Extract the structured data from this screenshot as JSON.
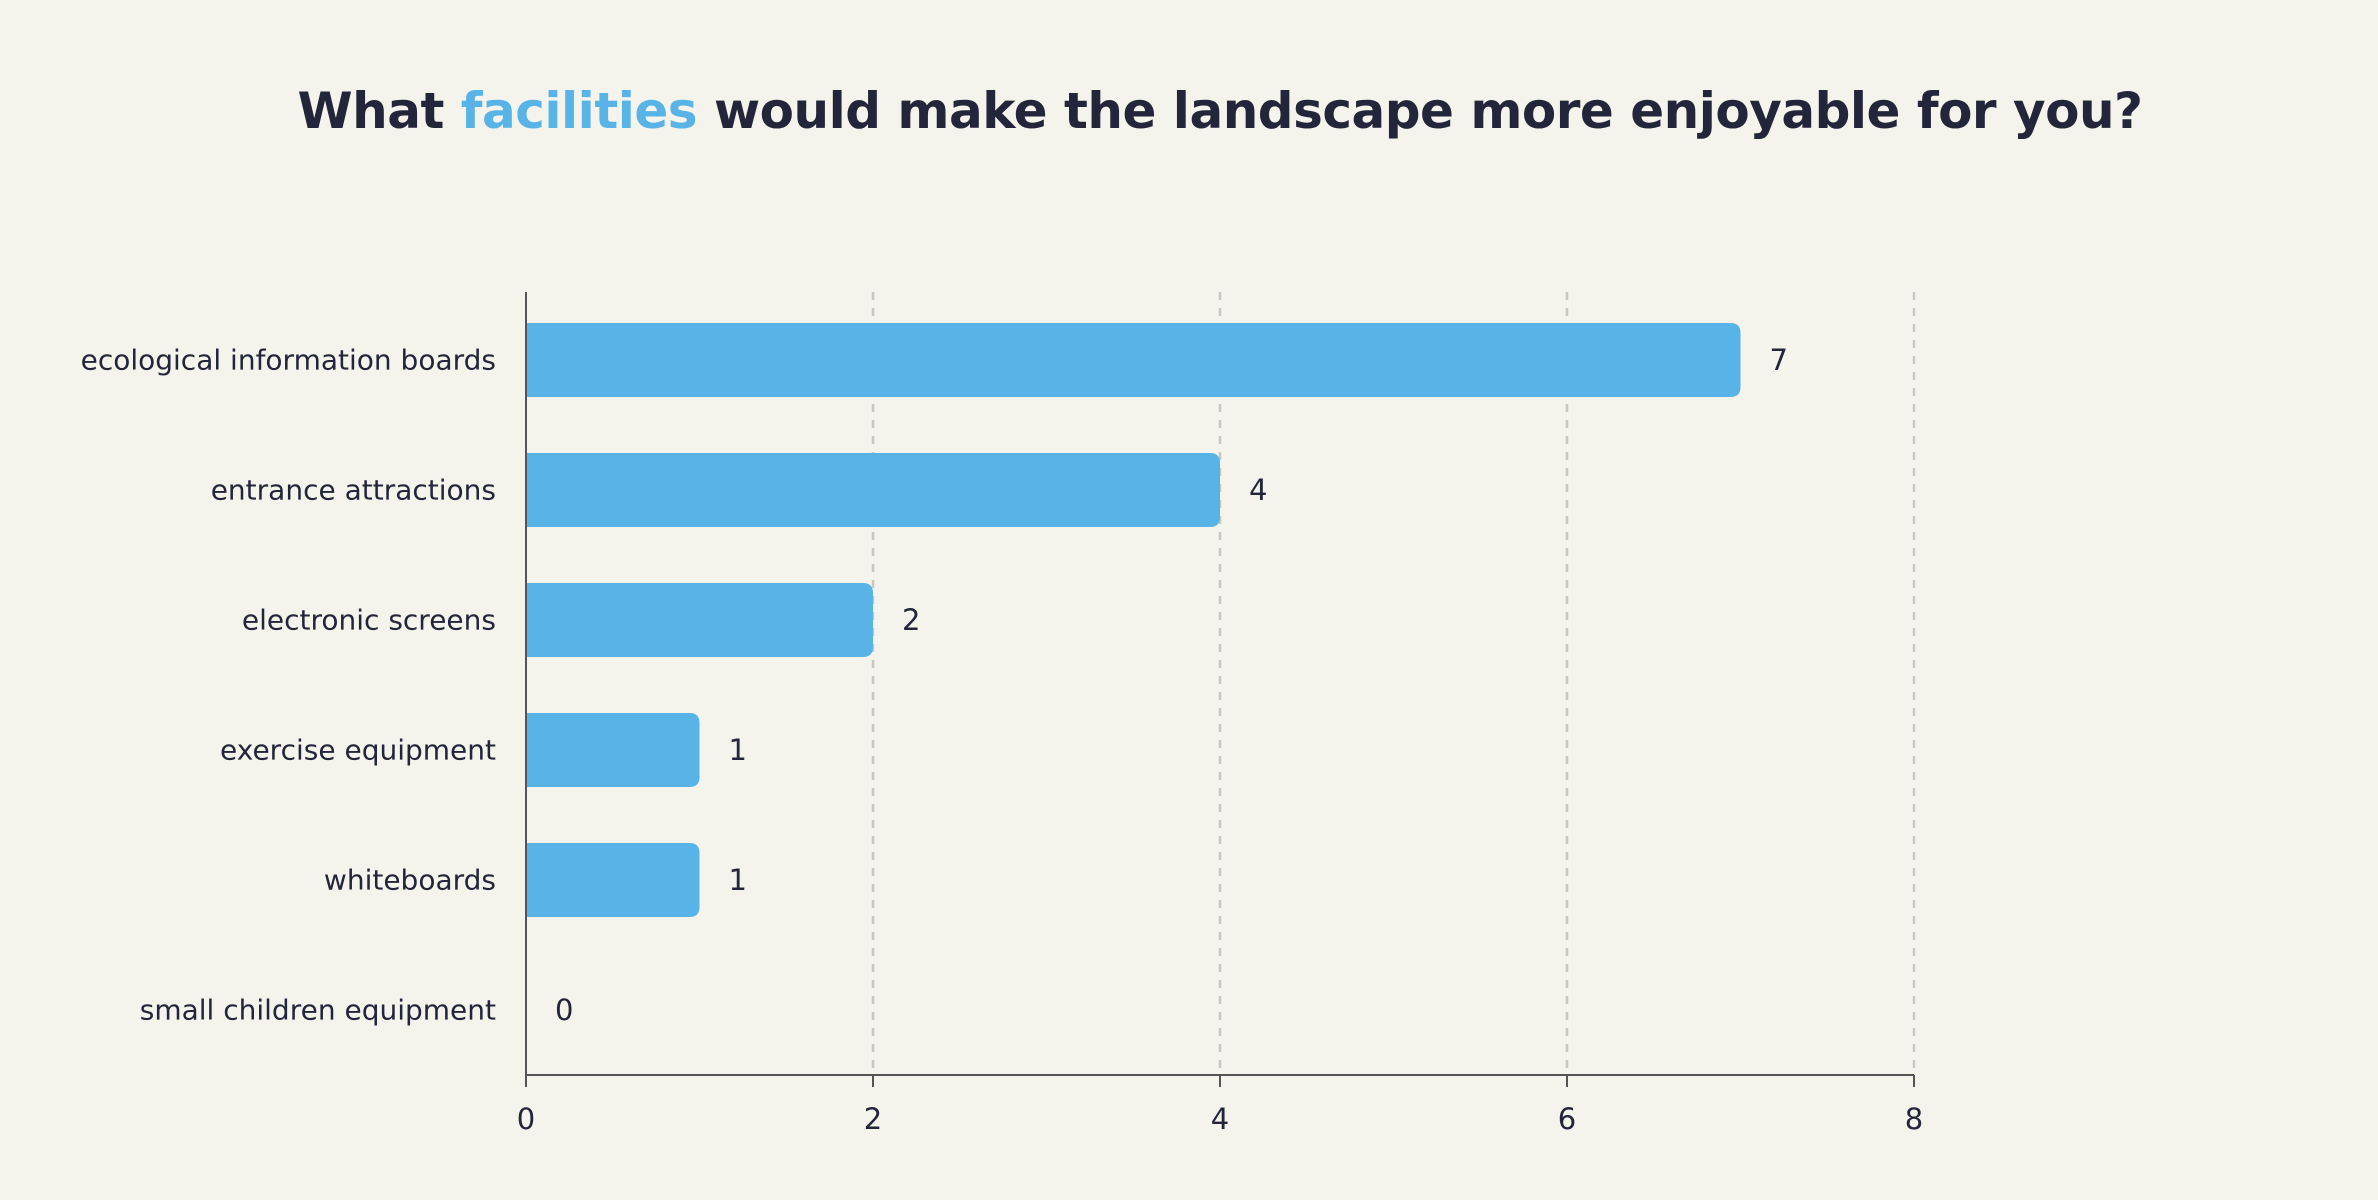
{
  "title": {
    "prefix": "What",
    "highlight": "facilities",
    "suffix": "would make the landscape more enjoyable for you?"
  },
  "colors": {
    "background": "#f4f3ec",
    "bar": "#58b3e7",
    "text": "#23263a",
    "grid": "#c8c7c2",
    "axis": "#555555"
  },
  "chart_data": {
    "type": "bar",
    "orientation": "horizontal",
    "title": "What facilities would make the landscape more enjoyable for you?",
    "categories": [
      "ecological information boards",
      "entrance attractions",
      "electronic screens",
      "exercise equipment",
      "whiteboards",
      "small children equipment"
    ],
    "values": [
      7,
      4,
      2,
      1,
      1,
      0
    ],
    "xlim": [
      0,
      8
    ],
    "xticks": [
      0,
      2,
      4,
      6,
      8
    ],
    "xlabel": "",
    "ylabel": "",
    "grid": "vertical-dashed",
    "data_labels": true
  }
}
